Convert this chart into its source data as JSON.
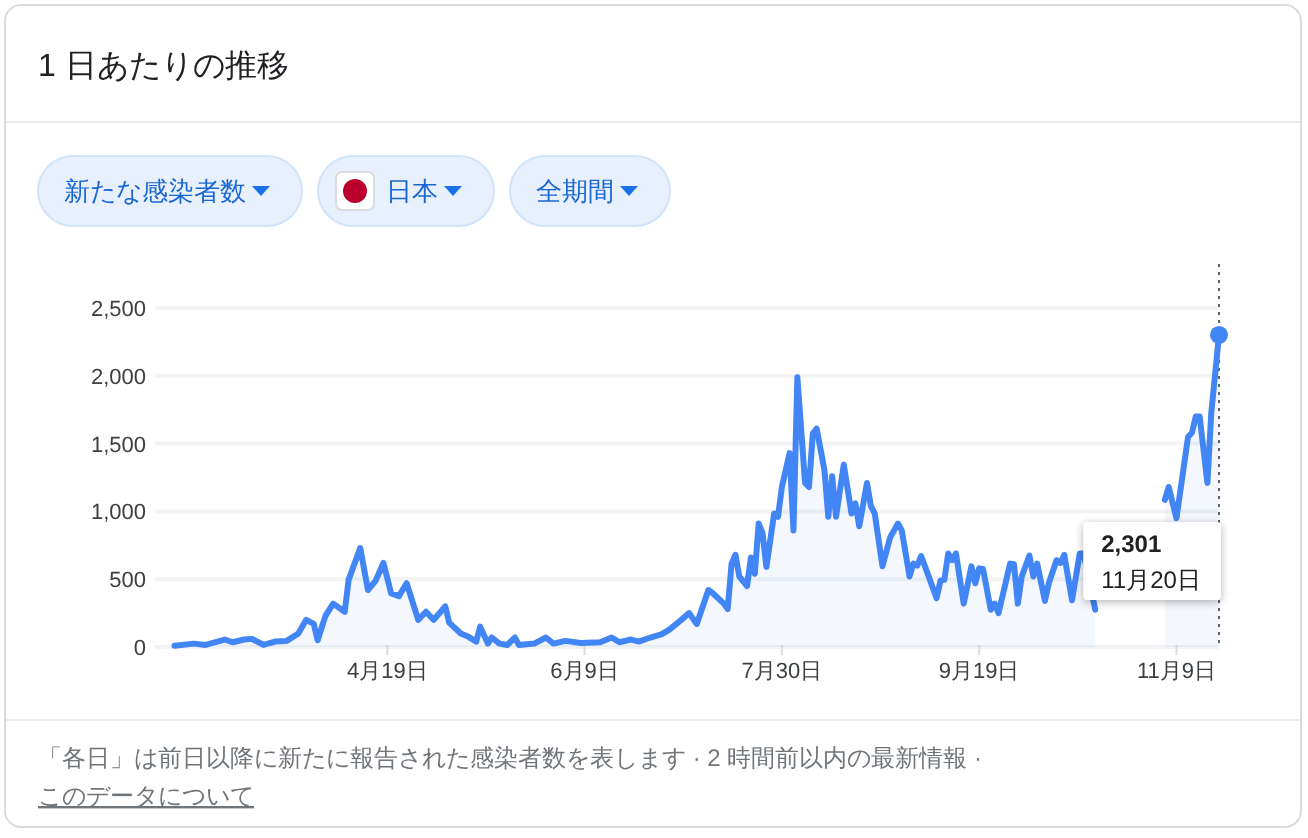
{
  "chart_data": {
    "type": "area",
    "title": "1 日あたりの推移",
    "annotations": [
      "新たな感染者数",
      "日本",
      "全期間",
      "2,301",
      "11月20日",
      "「各日」は前日以降に新たに報告された感染者数を表します · 2 時間前以内の最新情報 ·",
      "このデータについて"
    ],
    "x": [
      "--02-24",
      "--02-29",
      "--03-03",
      "--03-08",
      "--03-10",
      "--03-13",
      "--03-15",
      "--03-18",
      "--03-21",
      "--03-24",
      "--03-27",
      "--03-29",
      "--03-31",
      "--04-01",
      "--04-03",
      "--04-05",
      "--04-08",
      "--04-09",
      "--04-12",
      "--04-14",
      "--04-16",
      "--04-18",
      "--04-20",
      "--04-22",
      "--04-24",
      "--04-27",
      "--04-29",
      "--05-01",
      "--05-04",
      "--05-05",
      "--05-08",
      "--05-10",
      "--05-12",
      "--05-13",
      "--05-15",
      "--05-16",
      "--05-18",
      "--05-20",
      "--05-22",
      "--05-23",
      "--05-27",
      "--05-30",
      "--06-01",
      "--06-04",
      "--06-08",
      "--06-13",
      "--06-16",
      "--06-18",
      "--06-21",
      "--06-23",
      "--06-26",
      "--06-29",
      "--07-01",
      "--07-04",
      "--07-06",
      "--07-08",
      "--07-11",
      "--07-12",
      "--07-15",
      "--07-16",
      "--07-17",
      "--07-18",
      "--07-19",
      "--07-21",
      "--07-22",
      "--07-23",
      "--07-24",
      "--07-25",
      "--07-26",
      "--07-28",
      "--07-29",
      "--07-30",
      "--08-01",
      "--08-02",
      "--08-03",
      "--08-05",
      "--08-06",
      "--08-07",
      "--08-08",
      "--08-10",
      "--08-11",
      "--08-12",
      "--08-13",
      "--08-15",
      "--08-17",
      "--08-18",
      "--08-19",
      "--08-21",
      "--08-22",
      "--08-23",
      "--08-25",
      "--08-27",
      "--08-29",
      "--08-30",
      "--09-01",
      "--09-02",
      "--09-03",
      "--09-04",
      "--09-05",
      "--09-08",
      "--09-09",
      "--09-10",
      "--09-11",
      "--09-12",
      "--09-13",
      "--09-15",
      "--09-17",
      "--09-18",
      "--09-19",
      "--09-20",
      "--09-22",
      "--09-23",
      "--09-24",
      "--09-27",
      "--09-28",
      "--09-29",
      "--09-30",
      "--10-02",
      "--10-03",
      "--10-04",
      "--10-06",
      "--10-07",
      "--10-09",
      "--10-10",
      "--10-11",
      "--10-13",
      "--10-15",
      "--10-16",
      "--10-19",
      "--10-28",
      "--11-06",
      "--11-07",
      "--11-09",
      "--11-12",
      "--11-13",
      "--11-14",
      "--11-15",
      "--11-17",
      "--11-18",
      "--11-20"
    ],
    "series": [
      {
        "color": "#4285f4",
        "values": [
          10,
          25,
          15,
          55,
          35,
          55,
          60,
          15,
          40,
          45,
          100,
          200,
          170,
          50,
          230,
          320,
          260,
          495,
          730,
          420,
          490,
          620,
          395,
          375,
          470,
          200,
          260,
          200,
          300,
          180,
          100,
          75,
          40,
          150,
          25,
          70,
          25,
          15,
          70,
          15,
          25,
          70,
          25,
          45,
          30,
          35,
          70,
          35,
          55,
          40,
          70,
          95,
          130,
          200,
          250,
          170,
          420,
          400,
          320,
          280,
          615,
          680,
          520,
          450,
          660,
          540,
          910,
          840,
          590,
          985,
          960,
          1180,
          1430,
          860,
          1990,
          1210,
          1180,
          1575,
          1610,
          1305,
          960,
          1260,
          960,
          1345,
          985,
          1060,
          890,
          1210,
          1040,
          985,
          595,
          810,
          910,
          860,
          520,
          615,
          600,
          670,
          595,
          360,
          490,
          495,
          690,
          640,
          690,
          320,
          595,
          470,
          580,
          575,
          275,
          320,
          250,
          615,
          610,
          320,
          520,
          675,
          520,
          615,
          340,
          470,
          640,
          620,
          680,
          345,
          690,
          690,
          275,
          null,
          1085,
          1180,
          950,
          1550,
          1580,
          1700,
          1700,
          1210,
          1725,
          2301
        ]
      },
      {
        "type": "scatter",
        "color": "#4285f4",
        "marker": "circle",
        "x": [
          "--11-20"
        ],
        "values": [
          2301
        ]
      }
    ],
    "xlim": [
      "--02-19",
      "--11-20"
    ],
    "xticks": [
      {
        "value": "--04-19",
        "label": "4月19日"
      },
      {
        "value": "--06-09",
        "label": "6月9日"
      },
      {
        "value": "--07-30",
        "label": "7月30日"
      },
      {
        "value": "--09-19",
        "label": "9月19日"
      },
      {
        "value": "--11-09",
        "label": "11月9日"
      }
    ],
    "ylim": [
      0,
      2500
    ],
    "yticks": [
      0,
      500,
      {
        "value": 1000,
        "label": "1,000"
      },
      {
        "value": 1500,
        "label": "1,500"
      },
      {
        "value": 2000,
        "label": "2,000"
      },
      {
        "value": 2500,
        "label": "2,500"
      }
    ],
    "grid": "y",
    "ref_lines": [
      {
        "axis": "x",
        "value": "--11-20",
        "color": "#5f6368",
        "line_style": "dotted"
      }
    ]
  }
}
